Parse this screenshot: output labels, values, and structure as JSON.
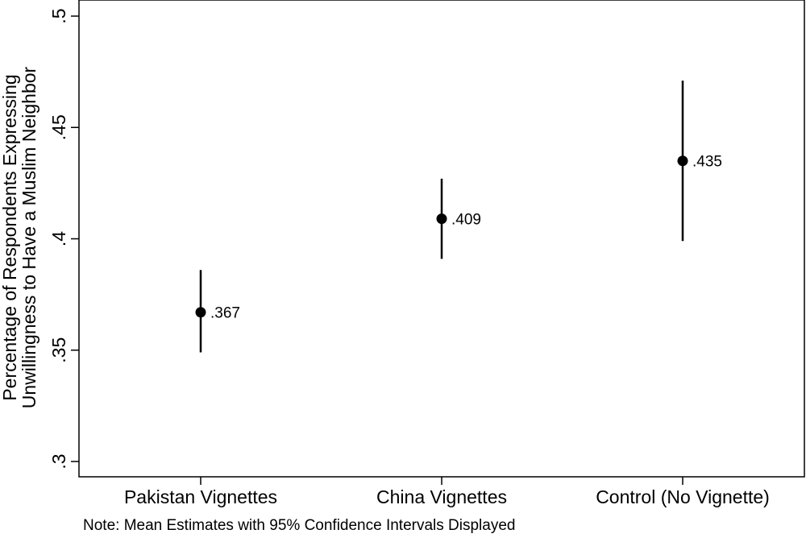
{
  "chart_data": {
    "type": "scatter",
    "subtype": "point estimates with 95% confidence intervals",
    "title": "",
    "xlabel": "",
    "ylabel_lines": [
      "Percentage of Respondents Expressing",
      "Unwillingness to Have a Muslim Neighbor"
    ],
    "ylim": [
      0.3,
      0.5
    ],
    "yticks": [
      0.3,
      0.35,
      0.4,
      0.45,
      0.5
    ],
    "ytick_labels": [
      ".3",
      ".35",
      ".4",
      ".45",
      ".5"
    ],
    "grid": false,
    "legend": "none",
    "categories": [
      "Pakistan Vignettes",
      "China Vignettes",
      "Control (No Vignette)"
    ],
    "values": [
      0.367,
      0.409,
      0.435
    ],
    "value_labels": [
      ".367",
      ".409",
      ".435"
    ],
    "ci_lower": [
      0.349,
      0.391,
      0.399
    ],
    "ci_upper": [
      0.386,
      0.427,
      0.471
    ],
    "marker_color": "#000000",
    "note": "Note: Mean Estimates with 95% Confidence Intervals Displayed"
  }
}
